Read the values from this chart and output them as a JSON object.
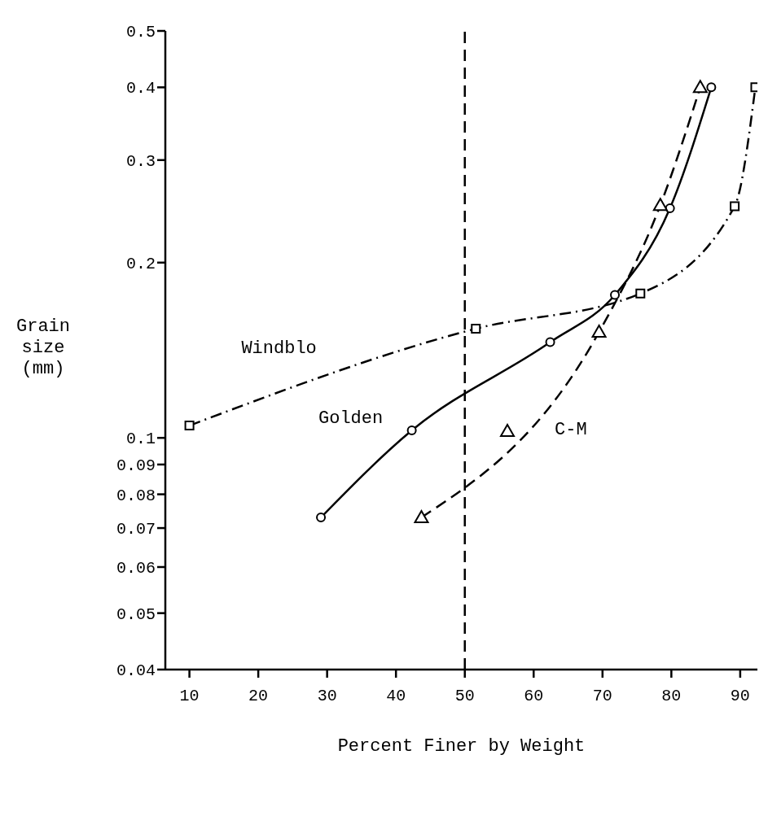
{
  "chart_data": {
    "type": "line",
    "xlabel": "Percent Finer by  Weight",
    "ylabel": "Grain size (mm)",
    "xlim": [
      6.5,
      92.5
    ],
    "xticks": [
      10,
      20,
      30,
      40,
      50,
      60,
      70,
      80,
      90
    ],
    "ylim": [
      0.04,
      0.5
    ],
    "yticks": [
      0.04,
      0.05,
      0.06,
      0.07,
      0.08,
      0.09,
      0.1,
      0.2,
      0.3,
      0.4,
      0.5
    ],
    "log": "y",
    "grid": false,
    "legend": "center",
    "series": [
      {
        "name": "Windblo",
        "color": "#000000",
        "marker": "square",
        "line_style": "dashdot",
        "x": [
          10,
          51.6,
          75.5,
          89.2,
          92.2
        ],
        "values": [
          0.105,
          0.154,
          0.177,
          0.25,
          0.4
        ]
      },
      {
        "name": "Golden",
        "color": "#000000",
        "marker": "circle",
        "line_style": "solid",
        "x": [
          29.1,
          42.3,
          62.4,
          71.8,
          79.8,
          85.8
        ],
        "values": [
          0.073,
          0.103,
          0.146,
          0.176,
          0.248,
          0.4
        ]
      },
      {
        "name": "C-M",
        "color": "#000000",
        "marker": "triangle",
        "line_style": "dashed",
        "x": [
          43.7,
          69.5,
          78.4,
          84.2
        ],
        "values": [
          0.073,
          0.152,
          0.251,
          0.4
        ]
      }
    ],
    "ref_lines": [
      {
        "axis": "x",
        "value": 50,
        "line_style": "dashed",
        "color": "#000000"
      }
    ]
  }
}
